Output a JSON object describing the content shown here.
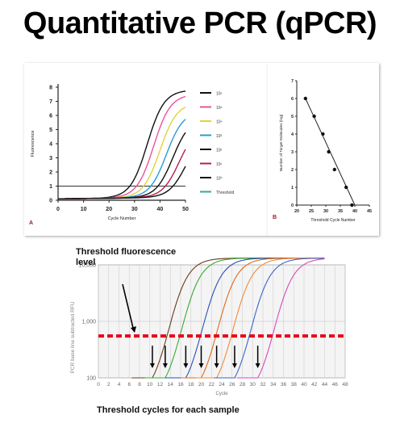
{
  "slide": {
    "title": "Quantitative PCR (qPCR)",
    "threshold_label": "Threshold fluorescence level",
    "threshold_cycles_label": "Threshold cycles for each sample"
  },
  "chart_data": [
    {
      "id": "panel-a",
      "type": "line",
      "panel_letter": "A",
      "xlabel": "Cycle Number",
      "ylabel": "Fluorescence",
      "xlim": [
        0,
        50
      ],
      "ylim": [
        0,
        8
      ],
      "xticks": [
        0,
        10,
        20,
        30,
        40,
        50
      ],
      "yticks": [
        0,
        1,
        2,
        3,
        4,
        5,
        6,
        7,
        8
      ],
      "threshold": 1,
      "legend_position": "right",
      "series": [
        {
          "name": "10⁶",
          "color": "#111111",
          "midpoint": 35,
          "plateau": 7.8
        },
        {
          "name": "10⁵",
          "color": "#e8559a",
          "midpoint": 37.5,
          "plateau": 7.5
        },
        {
          "name": "10⁴",
          "color": "#e0d43a",
          "midpoint": 40,
          "plateau": 6.9
        },
        {
          "name": "10³",
          "color": "#2a9ad6",
          "midpoint": 42.5,
          "plateau": 6.3
        },
        {
          "name": "10²",
          "color": "#111111",
          "midpoint": 45,
          "plateau": 5.8
        },
        {
          "name": "10¹",
          "color": "#b0204a",
          "midpoint": 47.5,
          "plateau": 5.2
        },
        {
          "name": "10⁰",
          "color": "#111111",
          "midpoint": 50,
          "plateau": 4.6
        },
        {
          "name": "Threshold",
          "color": "#3aa69a",
          "constant": 1
        }
      ]
    },
    {
      "id": "panel-b",
      "type": "scatter",
      "panel_letter": "B",
      "xlabel": "Threshold Cycle Number",
      "ylabel": "Number of Target Molecules (log)",
      "xlim": [
        20,
        45
      ],
      "ylim": [
        0,
        7
      ],
      "xticks": [
        20,
        25,
        30,
        35,
        40,
        45
      ],
      "yticks": [
        0,
        1,
        2,
        3,
        4,
        5,
        6,
        7
      ],
      "points": [
        {
          "x": 23,
          "y": 6
        },
        {
          "x": 26,
          "y": 5
        },
        {
          "x": 29,
          "y": 4
        },
        {
          "x": 31,
          "y": 3
        },
        {
          "x": 33,
          "y": 2
        },
        {
          "x": 37,
          "y": 1
        },
        {
          "x": 39,
          "y": 0
        }
      ],
      "fit_line": [
        {
          "x": 23,
          "y": 6
        },
        {
          "x": 40,
          "y": 0
        }
      ]
    },
    {
      "id": "panel-c",
      "type": "line",
      "xlabel": "Cycle",
      "ylabel": "PCR base line subtracted RFU",
      "xlim": [
        0,
        48
      ],
      "ylim_log": [
        100,
        10000
      ],
      "xticks": [
        0,
        2,
        4,
        6,
        8,
        10,
        12,
        14,
        16,
        18,
        20,
        22,
        24,
        26,
        28,
        30,
        32,
        34,
        36,
        38,
        40,
        42,
        44,
        46,
        48
      ],
      "ytick_labels": [
        "100",
        "1,000",
        "10,000"
      ],
      "threshold_rfu": 550,
      "threshold_color": "#e8001c",
      "threshold_cycles": [
        10.5,
        13,
        17,
        20,
        23,
        26.5,
        31
      ],
      "series": [
        {
          "color": "#6b3a1e",
          "ct": 10.5
        },
        {
          "color": "#3aa83a",
          "ct": 13
        },
        {
          "color": "#2a4fb8",
          "ct": 17
        },
        {
          "color": "#e06a1e",
          "ct": 20
        },
        {
          "color": "#f08a3a",
          "ct": 23
        },
        {
          "color": "#3a66c8",
          "ct": 26.5
        },
        {
          "color": "#d84ab8",
          "ct": 31
        }
      ]
    }
  ]
}
